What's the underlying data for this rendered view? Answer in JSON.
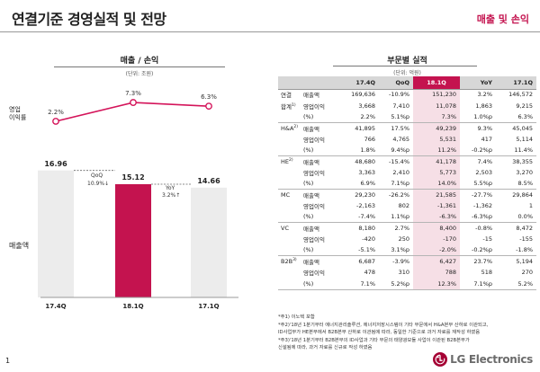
{
  "header": {
    "title": "연결기준 경영실적 및 전망",
    "tag": "매출 및 손익"
  },
  "left": {
    "section_title": "매출 / 손익",
    "unit": "(단위: 조원)",
    "op_margin_label": "영업\n이익률",
    "sales_label": "매출액",
    "qoq_label": "QoQ",
    "qoq_value": "10.9%↓",
    "yoy_label": "YoY",
    "yoy_value": "3.2%↑"
  },
  "chart_data": {
    "type": "bar",
    "categories": [
      "17.4Q",
      "18.1Q",
      "17.1Q"
    ],
    "series": [
      {
        "name": "매출액",
        "values": [
          16.96,
          15.12,
          14.66
        ],
        "labels": [
          "16.96",
          "15.12",
          "14.66"
        ]
      },
      {
        "name": "영업이익률",
        "values": [
          2.2,
          7.3,
          6.3
        ],
        "labels": [
          "2.2%",
          "7.3%",
          "6.3%"
        ]
      }
    ],
    "highlight_category": "18.1Q",
    "ylim": [
      0,
      18
    ]
  },
  "right": {
    "section_title": "부문별 실적",
    "unit": "(단위: 억원)",
    "columns": [
      "17.4Q",
      "QoQ",
      "18.1Q",
      "YoY",
      "17.1Q"
    ],
    "groups": [
      {
        "segment": "연결",
        "segment2": "합계",
        "sup": "1)",
        "rows": [
          {
            "metric": "매출액",
            "cells": [
              "169,636",
              "-10.9%",
              "151,230",
              "3.2%",
              "146,572"
            ]
          },
          {
            "metric": "영업이익",
            "cells": [
              "3,668",
              "7,410",
              "11,078",
              "1,863",
              "9,215"
            ]
          },
          {
            "metric": "(%)",
            "cells": [
              "2.2%",
              "5.1%p",
              "7.3%",
              "1.0%p",
              "6.3%"
            ]
          }
        ]
      },
      {
        "segment": "H&A",
        "segment2": "",
        "sup": "2)",
        "rows": [
          {
            "metric": "매출액",
            "cells": [
              "41,895",
              "17.5%",
              "49,239",
              "9.3%",
              "45,045"
            ]
          },
          {
            "metric": "영업이익",
            "cells": [
              "766",
              "4,765",
              "5,531",
              "417",
              "5,114"
            ]
          },
          {
            "metric": "(%)",
            "cells": [
              "1.8%",
              "9.4%p",
              "11.2%",
              "-0.2%p",
              "11.4%"
            ]
          }
        ]
      },
      {
        "segment": "HE",
        "segment2": "",
        "sup": "2)",
        "rows": [
          {
            "metric": "매출액",
            "cells": [
              "48,680",
              "-15.4%",
              "41,178",
              "7.4%",
              "38,355"
            ]
          },
          {
            "metric": "영업이익",
            "cells": [
              "3,363",
              "2,410",
              "5,773",
              "2,503",
              "3,270"
            ]
          },
          {
            "metric": "(%)",
            "cells": [
              "6.9%",
              "7.1%p",
              "14.0%",
              "5.5%p",
              "8.5%"
            ]
          }
        ]
      },
      {
        "segment": "MC",
        "segment2": "",
        "sup": "",
        "rows": [
          {
            "metric": "매출액",
            "cells": [
              "29,230",
              "-26.2%",
              "21,585",
              "-27.7%",
              "29,864"
            ]
          },
          {
            "metric": "영업이익",
            "cells": [
              "-2,163",
              "802",
              "-1,361",
              "-1,362",
              "1"
            ]
          },
          {
            "metric": "(%)",
            "cells": [
              "-7.4%",
              "1.1%p",
              "-6.3%",
              "-6.3%p",
              "0.0%"
            ]
          }
        ]
      },
      {
        "segment": "VC",
        "segment2": "",
        "sup": "",
        "rows": [
          {
            "metric": "매출액",
            "cells": [
              "8,180",
              "2.7%",
              "8,400",
              "-0.8%",
              "8,472"
            ]
          },
          {
            "metric": "영업이익",
            "cells": [
              "-420",
              "250",
              "-170",
              "-15",
              "-155"
            ]
          },
          {
            "metric": "(%)",
            "cells": [
              "-5.1%",
              "3.1%p",
              "-2.0%",
              "-0.2%p",
              "-1.8%"
            ]
          }
        ]
      },
      {
        "segment": "B2B",
        "segment2": "",
        "sup": "3)",
        "rows": [
          {
            "metric": "매출액",
            "cells": [
              "6,687",
              "-3.9%",
              "6,427",
              "23.7%",
              "5,194"
            ]
          },
          {
            "metric": "영업이익",
            "cells": [
              "478",
              "310",
              "788",
              "518",
              "270"
            ]
          },
          {
            "metric": "(%)",
            "cells": [
              "7.1%",
              "5.2%p",
              "12.3%",
              "7.1%p",
              "5.2%"
            ]
          }
        ]
      }
    ],
    "footnotes": [
      "*주1) 이노텍 포함",
      "*주2)'18년 1분기부터 에너지관리솔루션, 에너지저장시스템이 기타 부문에서 H&A본부 산하로 이관되고,",
      "ID사업부가 HE본부에서 B2B본부 산하로 이관됨에 따라, 동일한 기준으로 과거 자료를 재작성 하였음",
      "*주3)'18년 1분기부터 B2B본부의 ID사업과 기타 부문의 태양광모듈 사업이 이관된 B2B본부가",
      "신설됨에 따라, 과거 자료를 신규로 작성 하였음"
    ]
  },
  "footer": {
    "page_number": "1",
    "brand": "LG Electronics",
    "logo_letters": "LG",
    "brand_color": "#a50034",
    "accent_color": "#c4134f"
  }
}
